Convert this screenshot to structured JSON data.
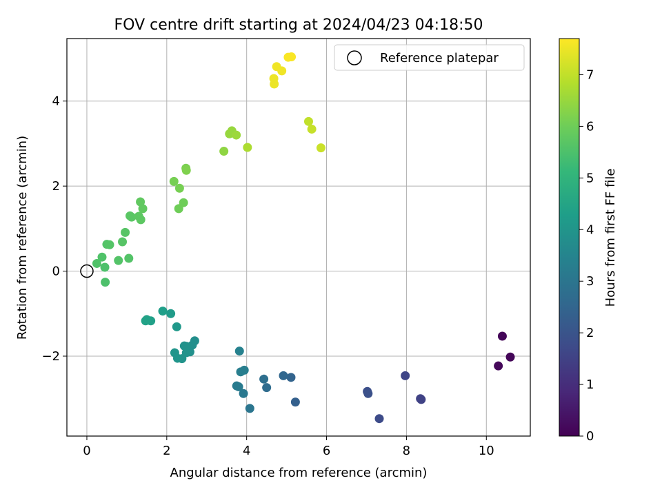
{
  "chart_data": {
    "type": "scatter",
    "title": "FOV centre drift starting at 2024/04/23 04:18:50",
    "xlabel": "Angular distance from reference (arcmin)",
    "ylabel": "Rotation from reference (arcmin)",
    "xlim": [
      -0.5,
      11.1
    ],
    "ylim": [
      -3.88,
      5.47
    ],
    "xticks": [
      0,
      2,
      4,
      6,
      8,
      10
    ],
    "yticks": [
      -2,
      0,
      2,
      4
    ],
    "xtick_labels": [
      "0",
      "2",
      "4",
      "6",
      "8",
      "10"
    ],
    "ytick_labels": [
      "−2",
      "0",
      "2",
      "4"
    ],
    "grid": true,
    "legend": {
      "position": "top-right",
      "label": "Reference platepar"
    },
    "reference": {
      "x": 0,
      "y": 0,
      "marker": "open-circle"
    },
    "colorbar": {
      "label": "Hours from first FF file",
      "colormap": "viridis",
      "range": [
        0,
        7.7
      ],
      "ticks": [
        0,
        1,
        2,
        3,
        4,
        5,
        6,
        7
      ],
      "tick_labels": [
        "0",
        "1",
        "2",
        "3",
        "4",
        "5",
        "6",
        "7"
      ]
    },
    "points": [
      {
        "x": 10.4,
        "y": -1.53,
        "hours": 0.1
      },
      {
        "x": 10.6,
        "y": -2.02,
        "hours": 0.1
      },
      {
        "x": 10.3,
        "y": -2.23,
        "hours": 0.15
      },
      {
        "x": 8.35,
        "y": -3.0,
        "hours": 1.5
      },
      {
        "x": 8.37,
        "y": -3.02,
        "hours": 1.52
      },
      {
        "x": 7.97,
        "y": -2.46,
        "hours": 1.6
      },
      {
        "x": 7.32,
        "y": -3.47,
        "hours": 1.75
      },
      {
        "x": 7.02,
        "y": -2.83,
        "hours": 1.85
      },
      {
        "x": 7.04,
        "y": -2.88,
        "hours": 1.9
      },
      {
        "x": 5.22,
        "y": -3.08,
        "hours": 2.35
      },
      {
        "x": 5.11,
        "y": -2.5,
        "hours": 2.45
      },
      {
        "x": 4.92,
        "y": -2.46,
        "hours": 2.55
      },
      {
        "x": 4.5,
        "y": -2.74,
        "hours": 2.7
      },
      {
        "x": 4.43,
        "y": -2.54,
        "hours": 2.8
      },
      {
        "x": 4.08,
        "y": -3.23,
        "hours": 3.0
      },
      {
        "x": 3.92,
        "y": -2.88,
        "hours": 3.1
      },
      {
        "x": 3.75,
        "y": -2.7,
        "hours": 3.2
      },
      {
        "x": 3.8,
        "y": -2.72,
        "hours": 3.2
      },
      {
        "x": 3.85,
        "y": -2.37,
        "hours": 3.3
      },
      {
        "x": 3.94,
        "y": -2.33,
        "hours": 3.3
      },
      {
        "x": 3.82,
        "y": -1.88,
        "hours": 3.4
      },
      {
        "x": 2.7,
        "y": -1.64,
        "hours": 3.8
      },
      {
        "x": 2.64,
        "y": -1.74,
        "hours": 3.82
      },
      {
        "x": 2.58,
        "y": -1.9,
        "hours": 3.85
      },
      {
        "x": 2.49,
        "y": -1.77,
        "hours": 3.9
      },
      {
        "x": 2.44,
        "y": -1.76,
        "hours": 3.9
      },
      {
        "x": 2.49,
        "y": -1.92,
        "hours": 3.95
      },
      {
        "x": 2.38,
        "y": -2.06,
        "hours": 3.95
      },
      {
        "x": 2.27,
        "y": -2.05,
        "hours": 4.0
      },
      {
        "x": 2.2,
        "y": -1.92,
        "hours": 4.0
      },
      {
        "x": 2.25,
        "y": -1.31,
        "hours": 4.1
      },
      {
        "x": 2.1,
        "y": -1.0,
        "hours": 4.2
      },
      {
        "x": 1.9,
        "y": -0.94,
        "hours": 4.3
      },
      {
        "x": 1.6,
        "y": -1.17,
        "hours": 4.35
      },
      {
        "x": 1.5,
        "y": -1.14,
        "hours": 4.4
      },
      {
        "x": 1.47,
        "y": -1.17,
        "hours": 4.4
      },
      {
        "x": 0.46,
        "y": -0.26,
        "hours": 5.5
      },
      {
        "x": 0.45,
        "y": 0.09,
        "hours": 5.5
      },
      {
        "x": 0.25,
        "y": 0.18,
        "hours": 5.55
      },
      {
        "x": 0.38,
        "y": 0.33,
        "hours": 5.55
      },
      {
        "x": 0.79,
        "y": 0.25,
        "hours": 5.6
      },
      {
        "x": 1.05,
        "y": 0.3,
        "hours": 5.6
      },
      {
        "x": 0.5,
        "y": 0.63,
        "hours": 5.6
      },
      {
        "x": 0.57,
        "y": 0.62,
        "hours": 5.62
      },
      {
        "x": 0.89,
        "y": 0.69,
        "hours": 5.65
      },
      {
        "x": 0.96,
        "y": 0.91,
        "hours": 5.65
      },
      {
        "x": 1.08,
        "y": 1.3,
        "hours": 5.7
      },
      {
        "x": 1.12,
        "y": 1.27,
        "hours": 5.7
      },
      {
        "x": 1.3,
        "y": 1.29,
        "hours": 5.75
      },
      {
        "x": 1.35,
        "y": 1.21,
        "hours": 5.75
      },
      {
        "x": 1.4,
        "y": 1.47,
        "hours": 5.8
      },
      {
        "x": 1.34,
        "y": 1.63,
        "hours": 5.8
      },
      {
        "x": 2.3,
        "y": 1.47,
        "hours": 6.0
      },
      {
        "x": 2.42,
        "y": 1.61,
        "hours": 6.0
      },
      {
        "x": 2.18,
        "y": 2.11,
        "hours": 6.1
      },
      {
        "x": 2.32,
        "y": 1.95,
        "hours": 6.1
      },
      {
        "x": 2.48,
        "y": 2.42,
        "hours": 6.15
      },
      {
        "x": 2.49,
        "y": 2.37,
        "hours": 6.2
      },
      {
        "x": 3.43,
        "y": 2.82,
        "hours": 6.4
      },
      {
        "x": 3.57,
        "y": 3.23,
        "hours": 6.5
      },
      {
        "x": 3.63,
        "y": 3.3,
        "hours": 6.5
      },
      {
        "x": 3.74,
        "y": 3.2,
        "hours": 6.55
      },
      {
        "x": 4.02,
        "y": 2.91,
        "hours": 6.75
      },
      {
        "x": 5.55,
        "y": 3.52,
        "hours": 7.0
      },
      {
        "x": 5.63,
        "y": 3.34,
        "hours": 7.05
      },
      {
        "x": 5.86,
        "y": 2.9,
        "hours": 7.1
      },
      {
        "x": 4.68,
        "y": 4.53,
        "hours": 7.5
      },
      {
        "x": 4.69,
        "y": 4.4,
        "hours": 7.5
      },
      {
        "x": 4.88,
        "y": 4.71,
        "hours": 7.55
      },
      {
        "x": 4.75,
        "y": 4.81,
        "hours": 7.55
      },
      {
        "x": 5.04,
        "y": 5.03,
        "hours": 7.65
      },
      {
        "x": 5.12,
        "y": 5.04,
        "hours": 7.65
      }
    ]
  }
}
